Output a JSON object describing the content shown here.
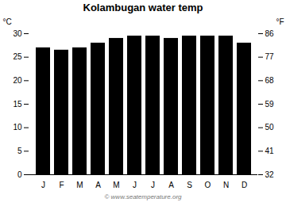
{
  "chart_data": {
    "type": "bar",
    "title": "Kolambugan water temp",
    "categories": [
      "J",
      "F",
      "M",
      "A",
      "M",
      "J",
      "J",
      "A",
      "S",
      "O",
      "N",
      "D"
    ],
    "values": [
      27.0,
      26.5,
      27.0,
      28.0,
      29.0,
      29.5,
      29.5,
      29.0,
      29.5,
      29.5,
      29.5,
      28.0
    ],
    "ylim": [
      0,
      30
    ],
    "yticks": [
      0,
      5,
      10,
      15,
      20,
      25,
      30
    ],
    "ylabel": "°C",
    "y2lim": [
      32,
      86
    ],
    "y2ticks": [
      32,
      41,
      50,
      59,
      68,
      77,
      86
    ],
    "y2label": "°F",
    "grid": false,
    "annotations": [
      "© www.seatemperature.org"
    ]
  }
}
